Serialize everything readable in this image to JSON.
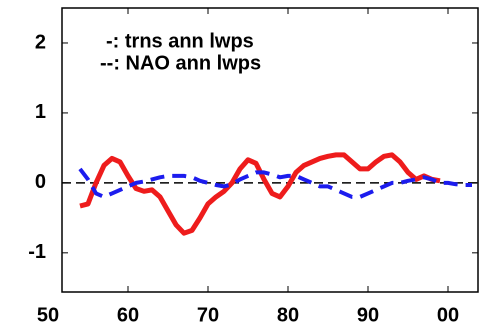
{
  "chart_data": {
    "type": "line",
    "x": [
      54,
      55,
      56,
      57,
      58,
      59,
      60,
      61,
      62,
      63,
      64,
      65,
      66,
      67,
      68,
      69,
      70,
      71,
      72,
      73,
      74,
      75,
      76,
      77,
      78,
      79,
      80,
      81,
      82,
      83,
      84,
      85,
      86,
      87,
      88,
      89,
      90,
      91,
      92,
      93,
      94,
      95,
      96,
      97,
      98,
      99,
      100,
      101,
      102,
      103
    ],
    "series": [
      {
        "name": "-: trns ann lwps",
        "color": "#ee1c1c",
        "style": "solid",
        "values": [
          -0.33,
          -0.3,
          0.0,
          0.25,
          0.35,
          0.3,
          0.1,
          -0.08,
          -0.12,
          -0.1,
          -0.2,
          -0.4,
          -0.6,
          -0.72,
          -0.68,
          -0.5,
          -0.3,
          -0.2,
          -0.12,
          0.0,
          0.2,
          0.33,
          0.28,
          0.05,
          -0.15,
          -0.2,
          -0.05,
          0.15,
          0.25,
          0.3,
          0.35,
          0.38,
          0.4,
          0.4,
          0.3,
          0.2,
          0.2,
          0.3,
          0.38,
          0.4,
          0.3,
          0.15,
          0.05,
          0.1,
          0.05,
          0.03,
          null,
          null,
          null,
          null
        ]
      },
      {
        "name": "--: NAO ann lwps",
        "color": "#1c1cee",
        "style": "dashed",
        "values": [
          0.2,
          0.05,
          -0.15,
          -0.2,
          -0.15,
          -0.1,
          -0.05,
          0.0,
          0.02,
          0.05,
          0.08,
          0.1,
          0.1,
          0.1,
          0.08,
          0.03,
          0.0,
          -0.03,
          -0.05,
          -0.02,
          0.05,
          0.1,
          0.15,
          0.15,
          0.12,
          0.08,
          0.1,
          0.1,
          0.05,
          0.0,
          -0.05,
          -0.05,
          -0.1,
          -0.15,
          -0.2,
          -0.2,
          -0.15,
          -0.1,
          -0.05,
          0.0,
          0.0,
          0.03,
          0.05,
          0.08,
          0.05,
          0.0,
          0.0,
          -0.02,
          -0.03,
          -0.03
        ]
      }
    ],
    "xlim": [
      51.75,
      103.75
    ],
    "ylim": [
      -1.56,
      2.5
    ],
    "xticks": [
      50,
      60,
      70,
      80,
      90,
      {
        "value": 100,
        "label": "00"
      }
    ],
    "yticks": [
      -1,
      0,
      1,
      2
    ],
    "hline": 0
  }
}
